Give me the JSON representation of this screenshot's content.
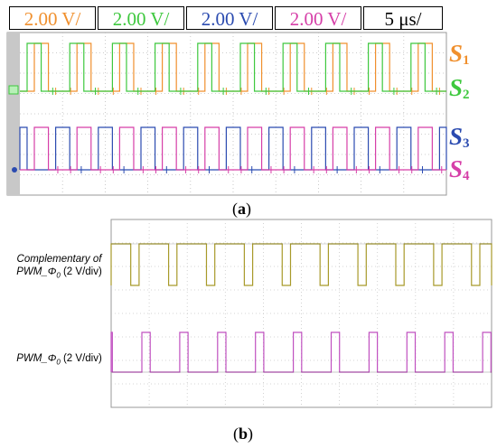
{
  "scale_labels": {
    "ch1": "2.00 V/",
    "ch2": "2.00 V/",
    "ch3": "2.00 V/",
    "ch4": "2.00 V/",
    "time": "5 μs/"
  },
  "colors": {
    "ch1": "#f0902e",
    "ch2": "#3ec83e",
    "ch3": "#2b4bb0",
    "ch4": "#d63fa8",
    "pwm_comp": "#a89a2a",
    "pwm": "#c050c0"
  },
  "panel_a": {
    "label_open": "(",
    "label_letter": "a",
    "label_close": ")",
    "signals": [
      {
        "letter": "S",
        "index": "1"
      },
      {
        "letter": "S",
        "index": "2"
      },
      {
        "letter": "S",
        "index": "3"
      },
      {
        "letter": "S",
        "index": "4"
      }
    ]
  },
  "panel_b": {
    "label_open": "(",
    "label_letter": "b",
    "label_close": ")",
    "trace1_line1": "Complementary of",
    "trace1_line2_a": "PWM_Φ",
    "trace1_line2_sub": "0",
    "trace1_line2_b": " (2 V/div)",
    "trace2_a": "PWM_Φ",
    "trace2_sub": "0",
    "trace2_b": " (2 V/div)"
  },
  "chart_data": [
    {
      "type": "line",
      "x_unit": "μs",
      "time_per_div_us": 5,
      "volts_per_div": 2,
      "series": [
        {
          "name": "S1",
          "duty": 0.33,
          "period_us": 5.7,
          "high_div": 1.7
        },
        {
          "name": "S2",
          "duty": 0.33,
          "period_us": 5.7,
          "phase": 0.17,
          "high_div": 1.7
        },
        {
          "name": "S3",
          "duty": 0.33,
          "period_us": 5.7,
          "phase": 0.5,
          "high_div": 1.7
        },
        {
          "name": "S4",
          "duty": 0.33,
          "period_us": 5.7,
          "phase": 0.67,
          "high_div": 1.7
        }
      ]
    },
    {
      "type": "line",
      "series": [
        {
          "name": "Complementary of PWM_Φ0",
          "duty": 0.78,
          "high_div": 2.7
        },
        {
          "name": "PWM_Φ0",
          "duty": 0.22,
          "high_div": 2.7
        }
      ]
    }
  ]
}
